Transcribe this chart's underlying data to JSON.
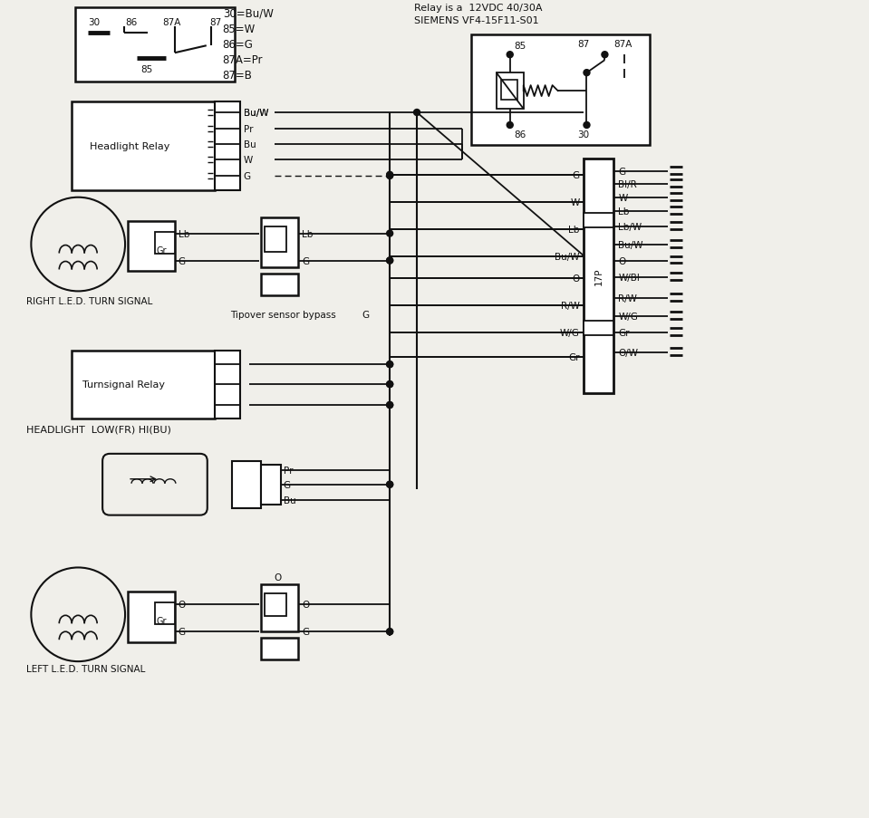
{
  "bg_color": "#f0efea",
  "line_color": "#111111",
  "relay_legend": [
    "30=Bu/W",
    "85=W",
    "86=G",
    "87A=Pr",
    "87=B"
  ],
  "headlight_relay_label": "Headlight Relay",
  "headlight_wires": [
    "Bu/W",
    "Pr",
    "Bu",
    "W",
    "G"
  ],
  "right_turn_label": "RIGHT L.E.D. TURN SIGNAL",
  "left_turn_label": "LEFT L.E.D. TURN SIGNAL",
  "headlight_label": "HEADLIGHT  LOW(FR) HI(BU)",
  "headlight_wires2": [
    "Pr",
    "G",
    "Bu"
  ],
  "turnsignal_relay_label": "Turnsignal Relay",
  "tipover_label": "Tipover sensor bypass",
  "tipover_wire": "G",
  "connector_left_labels": [
    "G",
    "W",
    "Lb",
    "Bu/W",
    "O",
    "R/W",
    "W/G",
    "Gr"
  ],
  "connector_right_labels": [
    "G",
    "Bl/R",
    "W",
    "Lb",
    "Lb/W",
    "Bu/W",
    "O",
    "W/Bl",
    "R/W",
    "W/G",
    "Gr",
    "O/W"
  ],
  "connector_label": "17P",
  "relay_info_line1": "Relay is a  12VDC 40/30A",
  "relay_info_line2": "SIEMENS VF4-15F11-S01",
  "relay_top_labels": [
    "30",
    "86",
    "87A",
    "87"
  ],
  "relay_bot_label": "85"
}
